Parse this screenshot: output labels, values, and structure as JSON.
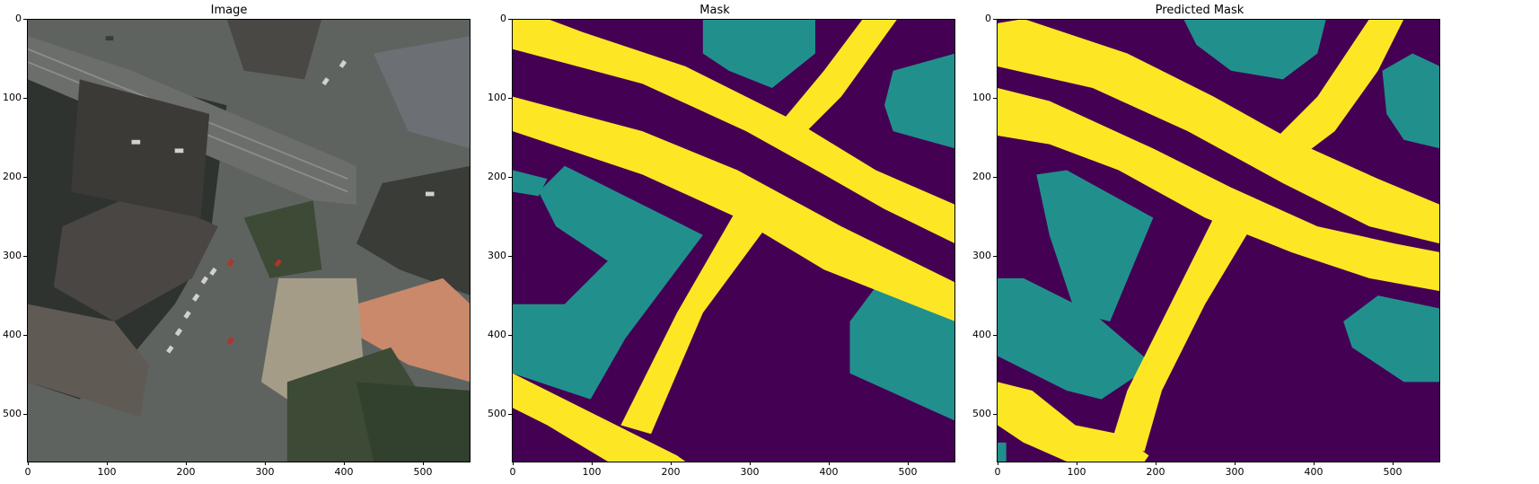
{
  "panels": [
    {
      "title": "Image"
    },
    {
      "title": "Mask"
    },
    {
      "title": "Predicted Mask"
    }
  ],
  "x_ticks": [
    "0",
    "100",
    "200",
    "300",
    "400",
    "500"
  ],
  "y_ticks": [
    "0",
    "100",
    "200",
    "300",
    "400",
    "500"
  ],
  "colors": {
    "background": "#440154",
    "building": "#21908c",
    "road": "#fde725",
    "photo_base": "#5e6360",
    "photo_vegetation": "#3c4a36",
    "photo_roof": "#4a4644",
    "photo_roof_orange": "#c9896a"
  }
}
